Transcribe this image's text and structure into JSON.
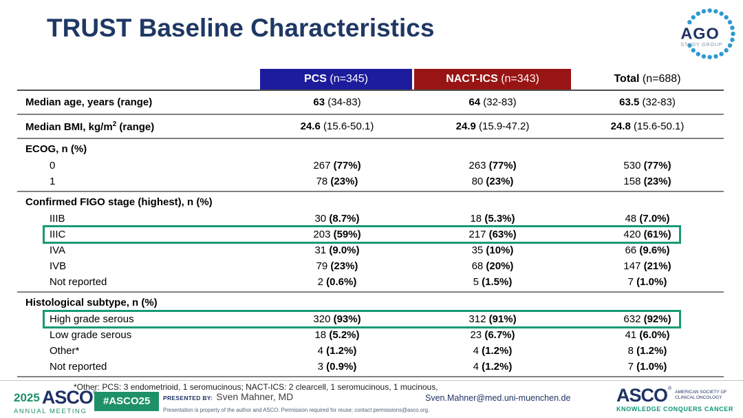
{
  "title": "TRUST Baseline Characteristics",
  "ago_logo": {
    "text": "AGO",
    "subtext": "STUDY GROUP"
  },
  "colors": {
    "title_navy": "#1f3864",
    "pcs_blue": "#1c1c9d",
    "nact_red": "#991414",
    "highlight_green": "#169a74",
    "badge_green": "#1f9168",
    "asco_navy": "#1e3264",
    "asco_green": "#1e8f67",
    "tagline_teal": "#0c9476",
    "ago_dot_blue": "#2f9ad2"
  },
  "table": {
    "columns": [
      {
        "name": "PCS",
        "n": " (n=345)"
      },
      {
        "name": "NACT-ICS",
        "n": " (n=343)"
      },
      {
        "name": "Total",
        "n": " (n=688)"
      }
    ],
    "sections": [
      {
        "rows": [
          {
            "label": "Median age, years (range)",
            "bold": true,
            "style": "median",
            "values": [
              [
                "63",
                "(34-83)"
              ],
              [
                "64",
                "(32-83)"
              ],
              [
                "63.5",
                "(32-83)"
              ]
            ]
          }
        ]
      },
      {
        "rows": [
          {
            "label": "Median BMI, kg/m",
            "sup": "2",
            "label_after": " (range)",
            "bold": true,
            "style": "median",
            "values": [
              [
                "24.6",
                "(15.6-50.1)"
              ],
              [
                "24.9",
                "(15.9-47.2)"
              ],
              [
                "24.8",
                "(15.6-50.1)"
              ]
            ]
          }
        ]
      },
      {
        "rows": [
          {
            "label": "ECOG, n (%)",
            "bold": true,
            "style": "header",
            "values": []
          },
          {
            "label": "0",
            "indent": true,
            "style": "count",
            "values": [
              [
                "267",
                "(77%)"
              ],
              [
                "263",
                "(77%)"
              ],
              [
                "530",
                "(77%)"
              ]
            ]
          },
          {
            "label": "1",
            "indent": true,
            "style": "count",
            "values": [
              [
                "78",
                "(23%)"
              ],
              [
                "80",
                "(23%)"
              ],
              [
                "158",
                "(23%)"
              ]
            ]
          }
        ]
      },
      {
        "rows": [
          {
            "label": "Confirmed FIGO stage (highest), n (%)",
            "bold": true,
            "style": "header",
            "values": []
          },
          {
            "label": "IIIB",
            "indent": true,
            "style": "count",
            "values": [
              [
                "30",
                "(8.7%)"
              ],
              [
                "18",
                "(5.3%)"
              ],
              [
                "48",
                "(7.0%)"
              ]
            ]
          },
          {
            "label": "IIIC",
            "indent": true,
            "style": "count",
            "boxed": true,
            "values": [
              [
                "203",
                "(59%)"
              ],
              [
                "217",
                "(63%)"
              ],
              [
                "420",
                "(61%)"
              ]
            ]
          },
          {
            "label": "IVA",
            "indent": true,
            "style": "count",
            "values": [
              [
                "31",
                "(9.0%)"
              ],
              [
                "35",
                "(10%)"
              ],
              [
                "66",
                "(9.6%)"
              ]
            ]
          },
          {
            "label": "IVB",
            "indent": true,
            "style": "count",
            "values": [
              [
                "79",
                "(23%)"
              ],
              [
                "68",
                "(20%)"
              ],
              [
                "147",
                "(21%)"
              ]
            ]
          },
          {
            "label": "Not reported",
            "indent": true,
            "style": "count",
            "values": [
              [
                "2",
                "(0.6%)"
              ],
              [
                "5",
                "(1.5%)"
              ],
              [
                "7",
                "(1.0%)"
              ]
            ]
          }
        ]
      },
      {
        "rows": [
          {
            "label": "Histological subtype, n (%)",
            "bold": true,
            "style": "header",
            "values": []
          },
          {
            "label": "High grade serous",
            "indent": true,
            "style": "count",
            "boxed": true,
            "values": [
              [
                "320",
                "(93%)"
              ],
              [
                "312",
                "(91%)"
              ],
              [
                "632",
                "(92%)"
              ]
            ]
          },
          {
            "label": "Low grade serous",
            "indent": true,
            "style": "count",
            "values": [
              [
                "18",
                "(5.2%)"
              ],
              [
                "23",
                "(6.7%)"
              ],
              [
                "41",
                "(6.0%)"
              ]
            ]
          },
          {
            "label": "Other*",
            "indent": true,
            "style": "count",
            "values": [
              [
                "4",
                "(1.2%)"
              ],
              [
                "4",
                "(1.2%)"
              ],
              [
                "8",
                "(1.2%)"
              ]
            ]
          },
          {
            "label": "Not reported",
            "indent": true,
            "style": "count",
            "values": [
              [
                "3",
                "(0.9%)"
              ],
              [
                "4",
                "(1.2%)"
              ],
              [
                "7",
                "(1.0%)"
              ]
            ]
          }
        ]
      }
    ],
    "footnote": "*Other: PCS: 3 endometrioid, 1 seromucinous; NACT-ICS: 2 clearcell, 1 seromucinous, 1 mucinous,"
  },
  "footer": {
    "meeting_year": "2025",
    "meeting_asco": "ASCO",
    "meeting_mark": "®",
    "meeting_annual": "ANNUAL MEETING",
    "hashtag": "#ASCO25",
    "presented_by_label": "PRESENTED BY:",
    "presenter": "Sven Mahner, MD",
    "disclaimer": "Presentation is property of the author and ASCO. Permission required for reuse; contact permissions@asco.org.",
    "email": "Sven.Mahner@med.uni-muenchen.de",
    "asco_name": "ASCO",
    "asco_mark": "®",
    "asco_society_line1": "AMERICAN SOCIETY OF",
    "asco_society_line2": "CLINICAL ONCOLOGY",
    "asco_tagline": "KNOWLEDGE CONQUERS CANCER"
  }
}
